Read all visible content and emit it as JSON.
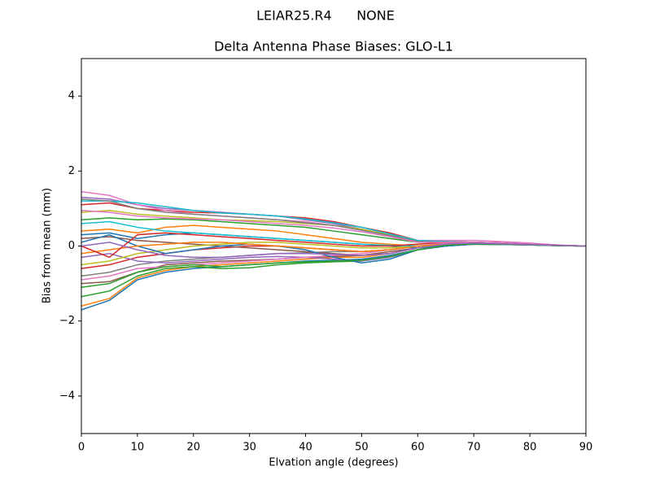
{
  "chart_data": {
    "type": "line",
    "suptitle": "LEIAR25.R4      NONE",
    "title": "Delta Antenna Phase Biases: GLO-L1",
    "xlabel": "Elvation angle (degrees)",
    "ylabel": "Bias from mean (mm)",
    "x": [
      0,
      5,
      10,
      15,
      20,
      25,
      30,
      35,
      40,
      45,
      50,
      55,
      60,
      65,
      70,
      75,
      80,
      85,
      90
    ],
    "xlim": [
      0,
      90
    ],
    "xticks": [
      0,
      10,
      20,
      30,
      40,
      50,
      60,
      70,
      80,
      90
    ],
    "ylim": [
      -5,
      5
    ],
    "yticks": [
      {
        "value": -4,
        "label": "−4"
      },
      {
        "value": -2,
        "label": "−2"
      },
      0,
      2,
      4
    ],
    "grid": false,
    "series": [
      {
        "color": "#1f77b4",
        "values": [
          -1.7,
          -1.45,
          -0.9,
          -0.7,
          -0.6,
          -0.55,
          -0.5,
          -0.45,
          -0.4,
          -0.38,
          -0.35,
          -0.25,
          -0.1,
          0.0,
          0.05,
          0.05,
          0.03,
          0.01,
          0
        ]
      },
      {
        "color": "#ff7f0e",
        "values": [
          -1.6,
          -1.4,
          -0.85,
          -0.65,
          -0.55,
          -0.5,
          -0.45,
          -0.4,
          -0.35,
          -0.3,
          -0.3,
          -0.2,
          -0.05,
          0.02,
          0.05,
          0.05,
          0.03,
          0.01,
          0
        ]
      },
      {
        "color": "#2ca02c",
        "values": [
          -1.35,
          -1.2,
          -0.8,
          -0.6,
          -0.55,
          -0.6,
          -0.58,
          -0.5,
          -0.45,
          -0.42,
          -0.4,
          -0.3,
          -0.1,
          0.05,
          0.1,
          0.08,
          0.05,
          0.02,
          0
        ]
      },
      {
        "color": "#d62728",
        "values": [
          1.1,
          1.15,
          1.0,
          0.95,
          0.9,
          0.88,
          0.85,
          0.8,
          0.75,
          0.65,
          0.5,
          0.35,
          0.15,
          0.12,
          0.1,
          0.08,
          0.05,
          0.02,
          0
        ]
      },
      {
        "color": "#9467bd",
        "values": [
          1.3,
          1.25,
          1.1,
          1.0,
          0.95,
          0.9,
          0.85,
          0.8,
          0.7,
          0.6,
          0.45,
          0.3,
          0.12,
          0.1,
          0.1,
          0.08,
          0.05,
          0.02,
          0
        ]
      },
      {
        "color": "#8c564b",
        "values": [
          -1.0,
          -0.95,
          -0.7,
          -0.5,
          -0.45,
          -0.4,
          -0.38,
          -0.35,
          -0.3,
          -0.28,
          -0.25,
          -0.15,
          -0.05,
          0.05,
          0.08,
          0.06,
          0.04,
          0.02,
          0
        ]
      },
      {
        "color": "#e377c2",
        "values": [
          1.45,
          1.35,
          1.1,
          0.95,
          0.85,
          0.8,
          0.75,
          0.7,
          0.65,
          0.55,
          0.45,
          0.3,
          0.15,
          0.15,
          0.15,
          0.12,
          0.08,
          0.03,
          0
        ]
      },
      {
        "color": "#7f7f7f",
        "values": [
          -0.8,
          -0.7,
          -0.5,
          -0.4,
          -0.35,
          -0.3,
          -0.25,
          -0.2,
          -0.18,
          -0.15,
          -0.15,
          -0.1,
          0.0,
          0.05,
          0.08,
          0.06,
          0.04,
          0.02,
          0
        ]
      },
      {
        "color": "#bcbd22",
        "values": [
          0.9,
          0.95,
          0.85,
          0.8,
          0.75,
          0.7,
          0.68,
          0.65,
          0.6,
          0.55,
          0.45,
          0.3,
          0.12,
          0.1,
          0.08,
          0.06,
          0.04,
          0.02,
          0
        ]
      },
      {
        "color": "#17becf",
        "values": [
          1.2,
          1.2,
          1.15,
          1.05,
          0.95,
          0.88,
          0.85,
          0.8,
          0.72,
          0.62,
          0.5,
          0.32,
          0.15,
          0.12,
          0.1,
          0.08,
          0.05,
          0.02,
          0
        ]
      },
      {
        "color": "#1f77b4",
        "values": [
          0.3,
          0.35,
          0.2,
          0.3,
          0.35,
          0.3,
          0.25,
          0.2,
          0.15,
          0.1,
          0.05,
          0.0,
          -0.05,
          0.0,
          0.05,
          0.05,
          0.03,
          0.01,
          0
        ]
      },
      {
        "color": "#ff7f0e",
        "values": [
          0.4,
          0.45,
          0.35,
          0.5,
          0.55,
          0.5,
          0.45,
          0.4,
          0.3,
          0.2,
          0.1,
          0.05,
          0.0,
          0.05,
          0.08,
          0.06,
          0.04,
          0.02,
          0
        ]
      },
      {
        "color": "#2ca02c",
        "values": [
          0.7,
          0.75,
          0.7,
          0.72,
          0.7,
          0.65,
          0.6,
          0.55,
          0.5,
          0.4,
          0.3,
          0.2,
          0.1,
          0.1,
          0.1,
          0.08,
          0.05,
          0.02,
          0
        ]
      },
      {
        "color": "#d62728",
        "values": [
          -0.6,
          -0.5,
          -0.3,
          -0.2,
          -0.1,
          -0.05,
          0.0,
          0.0,
          -0.05,
          -0.1,
          -0.15,
          -0.1,
          0.0,
          0.05,
          0.05,
          0.04,
          0.03,
          0.01,
          0
        ]
      },
      {
        "color": "#9467bd",
        "values": [
          -0.3,
          -0.2,
          -0.4,
          -0.45,
          -0.4,
          -0.35,
          -0.3,
          -0.28,
          -0.3,
          -0.35,
          -0.4,
          -0.3,
          -0.1,
          0.0,
          0.05,
          0.04,
          0.03,
          0.01,
          0
        ]
      },
      {
        "color": "#8c564b",
        "values": [
          0.2,
          0.25,
          0.15,
          0.1,
          0.05,
          0.0,
          -0.05,
          -0.1,
          -0.15,
          -0.2,
          -0.25,
          -0.2,
          -0.05,
          0.05,
          0.08,
          0.06,
          0.04,
          0.02,
          0
        ]
      },
      {
        "color": "#e377c2",
        "values": [
          -0.9,
          -0.8,
          -0.6,
          -0.55,
          -0.5,
          -0.45,
          -0.4,
          -0.35,
          -0.3,
          -0.25,
          -0.2,
          -0.1,
          0.0,
          0.08,
          0.1,
          0.08,
          0.05,
          0.02,
          0
        ]
      },
      {
        "color": "#7f7f7f",
        "values": [
          1.25,
          1.2,
          1.0,
          0.9,
          0.85,
          0.8,
          0.75,
          0.7,
          0.62,
          0.55,
          0.42,
          0.28,
          0.12,
          0.1,
          0.08,
          0.06,
          0.04,
          0.02,
          0
        ]
      },
      {
        "color": "#bcbd22",
        "values": [
          -0.5,
          -0.4,
          -0.2,
          -0.1,
          0.0,
          0.05,
          0.1,
          0.1,
          0.05,
          0.0,
          -0.05,
          -0.05,
          0.0,
          0.05,
          0.05,
          0.04,
          0.03,
          0.01,
          0
        ]
      },
      {
        "color": "#17becf",
        "values": [
          0.6,
          0.65,
          0.5,
          0.4,
          0.35,
          0.3,
          0.25,
          0.2,
          0.15,
          0.1,
          0.05,
          0.02,
          0.0,
          0.05,
          0.08,
          0.06,
          0.04,
          0.02,
          0
        ]
      },
      {
        "color": "#1f77b4",
        "values": [
          0.1,
          0.3,
          0.0,
          -0.2,
          -0.1,
          0.0,
          0.05,
          0.0,
          -0.1,
          -0.3,
          -0.45,
          -0.35,
          -0.1,
          0.0,
          0.05,
          0.04,
          0.03,
          0.01,
          0
        ]
      },
      {
        "color": "#ff7f0e",
        "values": [
          -0.2,
          -0.1,
          0.0,
          0.05,
          0.1,
          0.1,
          0.05,
          0.0,
          -0.05,
          -0.1,
          -0.15,
          -0.1,
          0.0,
          0.05,
          0.08,
          0.06,
          0.04,
          0.02,
          0
        ]
      },
      {
        "color": "#d62728",
        "values": [
          0.0,
          -0.3,
          0.3,
          0.35,
          0.3,
          0.25,
          0.2,
          0.15,
          0.1,
          0.05,
          0.0,
          0.0,
          0.05,
          0.1,
          0.1,
          0.08,
          0.05,
          0.02,
          0
        ]
      },
      {
        "color": "#e377c2",
        "values": [
          0.95,
          0.9,
          0.8,
          0.75,
          0.72,
          0.7,
          0.65,
          0.6,
          0.55,
          0.48,
          0.38,
          0.25,
          0.1,
          0.1,
          0.1,
          0.08,
          0.05,
          0.02,
          0
        ]
      },
      {
        "color": "#2ca02c",
        "values": [
          -1.1,
          -1.0,
          -0.7,
          -0.55,
          -0.5,
          -0.55,
          -0.5,
          -0.45,
          -0.42,
          -0.4,
          -0.38,
          -0.28,
          -0.1,
          0.02,
          0.06,
          0.05,
          0.03,
          0.01,
          0
        ]
      },
      {
        "color": "#9467bd",
        "values": [
          0.0,
          0.1,
          -0.1,
          -0.25,
          -0.3,
          -0.3,
          -0.25,
          -0.2,
          -0.2,
          -0.22,
          -0.25,
          -0.2,
          -0.05,
          0.05,
          0.08,
          0.06,
          0.04,
          0.02,
          0
        ]
      }
    ]
  }
}
